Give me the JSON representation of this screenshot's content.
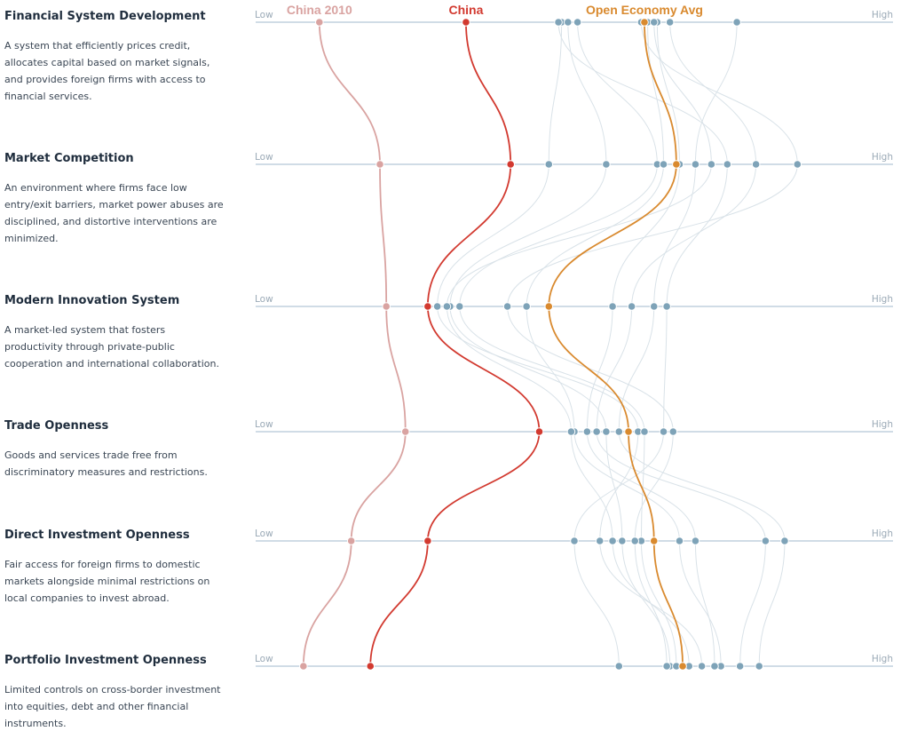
{
  "colors": {
    "axis": "#b4c8d6",
    "other": "#7ea3b8",
    "other_line": "#d9e2e8",
    "china2010": "#d9a3a1",
    "china": "#d23a30",
    "open_avg": "#d98a2f"
  },
  "chart_data": {
    "type": "parallel-coordinates",
    "axis_low_label": "Low",
    "axis_high_label": "High",
    "xlim": [
      0,
      100
    ],
    "dimensions": [
      {
        "title": "Financial System Development",
        "description": "A system that efficiently prices credit, allocates capital based on market signals, and provides foreign firms with access to financial services."
      },
      {
        "title": "Market Competition",
        "description": "An environment where firms face low entry/exit barriers, market power abuses are disciplined, and distortive interventions are minimized."
      },
      {
        "title": "Modern Innovation System",
        "description": "A market-led system that fosters productivity through private-public cooperation and international collaboration."
      },
      {
        "title": "Trade Openness",
        "description": "Goods and services trade free from discriminatory measures and restrictions."
      },
      {
        "title": "Direct Investment Openness",
        "description": "Fair access for foreign firms to domestic markets alongside minimal restrictions on local companies to invest abroad."
      },
      {
        "title": "Portfolio Investment Openness",
        "description": "Limited controls on cross-border investment into equities, debt and other financial instruments."
      }
    ],
    "highlighted_series": [
      {
        "name": "China 2010",
        "color_key": "china2010",
        "values": [
          10,
          19.5,
          20.5,
          23.5,
          15,
          7.5
        ]
      },
      {
        "name": "China",
        "color_key": "china",
        "values": [
          33,
          40,
          27,
          44.5,
          27,
          18
        ]
      },
      {
        "name": "Open Economy Avg",
        "color_key": "open_avg",
        "values": [
          61,
          66,
          46,
          58.5,
          62.5,
          67
        ]
      }
    ],
    "other_series": [
      [
        48,
        46,
        28.5,
        60,
        54,
        70
      ],
      [
        49,
        55,
        30.5,
        55,
        57.5,
        65
      ],
      [
        50.5,
        63,
        32,
        61,
        60.5,
        66
      ],
      [
        61.5,
        64,
        42.5,
        50,
        66.5,
        73
      ],
      [
        63,
        66.5,
        56,
        52,
        69,
        72
      ],
      [
        65,
        78.5,
        59,
        53.5,
        80,
        76
      ],
      [
        75.5,
        69,
        62.5,
        57,
        83,
        79
      ],
      [
        47.5,
        74,
        64.5,
        64,
        50,
        57
      ],
      [
        60.5,
        85,
        39.5,
        65.5,
        59.5,
        64.5
      ],
      [
        62.5,
        71.5,
        30,
        49.5,
        56,
        68
      ]
    ]
  }
}
